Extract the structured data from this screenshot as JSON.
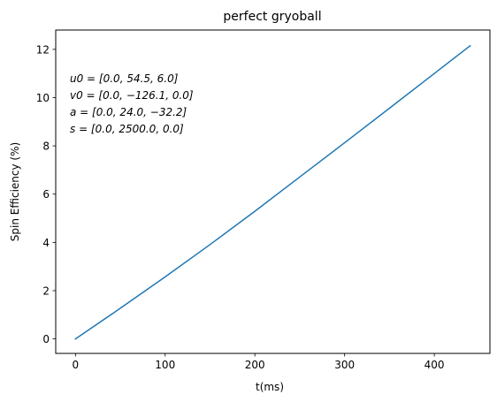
{
  "chart_data": {
    "type": "line",
    "title": "perfect gryoball",
    "xlabel": "t(ms)",
    "ylabel": "Spin Efficiency (%)",
    "xlim": [
      -22,
      462
    ],
    "ylim": [
      -0.6,
      12.8
    ],
    "xticks": [
      0,
      100,
      200,
      300,
      400
    ],
    "yticks": [
      0,
      2,
      4,
      6,
      8,
      10,
      12
    ],
    "grid": false,
    "legend": "none",
    "series": [
      {
        "color": "#1f77b4",
        "x": [
          0,
          50,
          100,
          150,
          200,
          250,
          300,
          350,
          400,
          440
        ],
        "y": [
          0,
          1.27,
          2.57,
          3.91,
          5.29,
          6.71,
          8.13,
          9.56,
          11.0,
          12.15
        ]
      }
    ],
    "annotations": [
      "u0 = [0.0, 54.5, 6.0]",
      "v0 = [0.0, −126.1, 0.0]",
      "a = [0.0, 24.0, −32.2]",
      "s = [0.0, 2500.0, 0.0]"
    ]
  }
}
